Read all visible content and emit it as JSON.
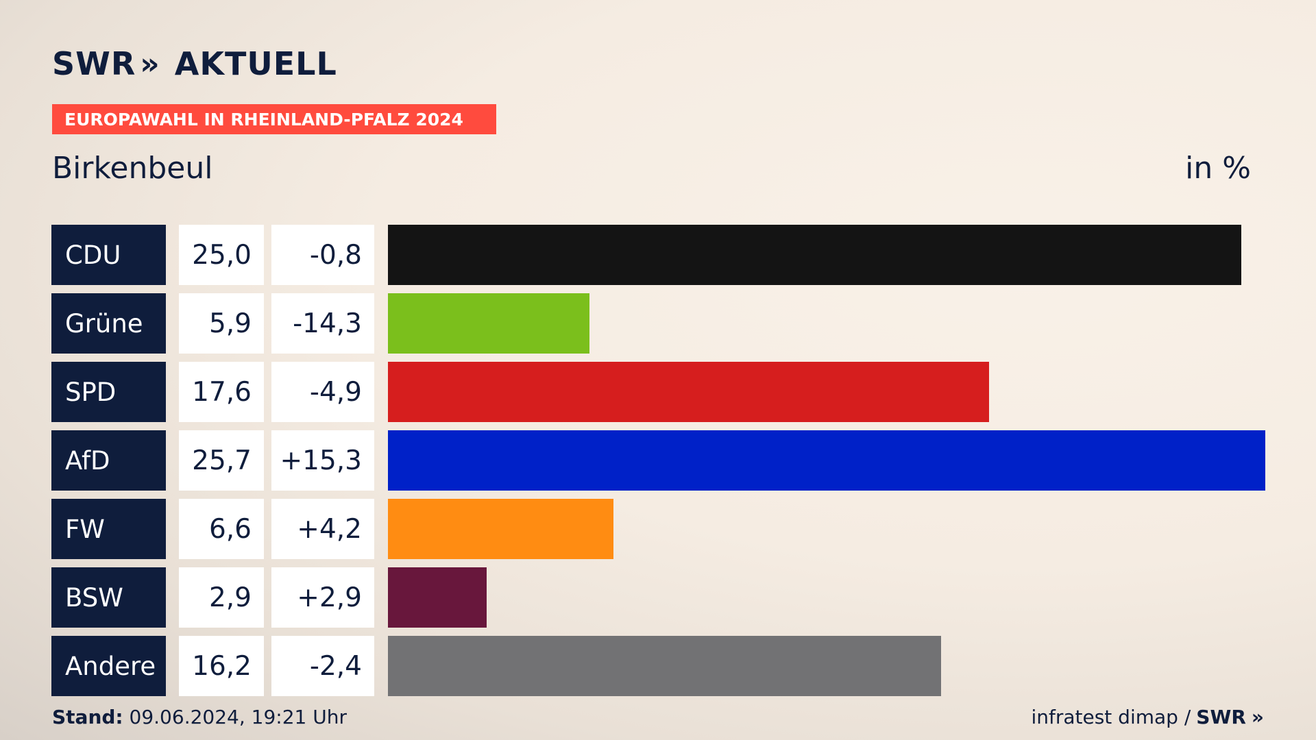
{
  "brand": {
    "name": "SWR",
    "chevrons": "»",
    "suffix": "AKTUELL"
  },
  "banner": "EUROPAWAHL IN RHEINLAND-PFALZ 2024",
  "location": "Birkenbeul",
  "unit": "in %",
  "footer": {
    "stand_label": "Stand:",
    "stand_value": "09.06.2024, 19:21 Uhr",
    "source": "infratest dimap /",
    "source_brand": "SWR",
    "source_chevrons": "»"
  },
  "chart_data": {
    "type": "bar",
    "title": "Europawahl in Rheinland-Pfalz 2024 – Birkenbeul",
    "unit": "in %",
    "categories": [
      "CDU",
      "Grüne",
      "SPD",
      "AfD",
      "FW",
      "BSW",
      "Andere"
    ],
    "values": [
      25.0,
      5.9,
      17.6,
      25.7,
      6.6,
      2.9,
      16.2
    ],
    "value_labels": [
      "25,0",
      "5,9",
      "17,6",
      "25,7",
      "6,6",
      "2,9",
      "16,2"
    ],
    "change_labels": [
      "-0,8",
      "-14,3",
      "-4,9",
      "+15,3",
      "+4,2",
      "+2,9",
      "-2,4"
    ],
    "changes": [
      -0.8,
      -14.3,
      -4.9,
      15.3,
      4.2,
      2.9,
      -2.4
    ],
    "colors": [
      "#141414",
      "#7bbf1c",
      "#d61e1e",
      "#0021c8",
      "#ff8c12",
      "#68173c",
      "#727274"
    ],
    "xlim": [
      0,
      25.7
    ]
  }
}
